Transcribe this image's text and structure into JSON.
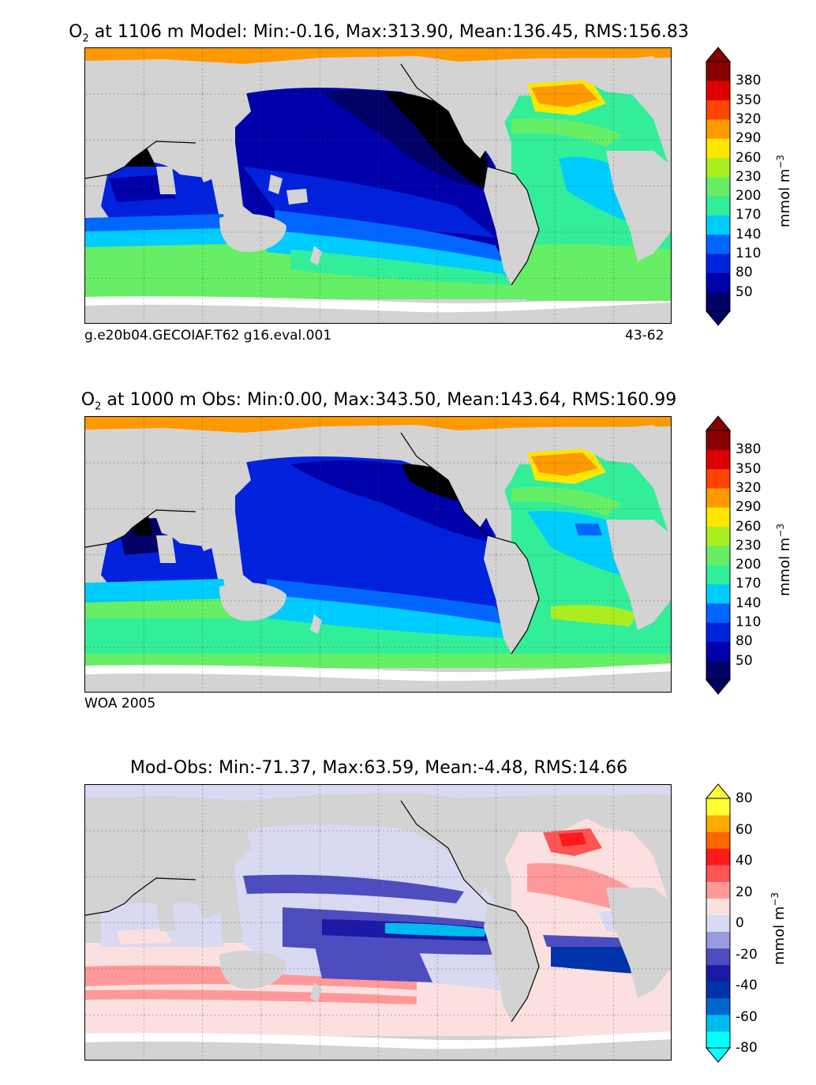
{
  "panels": {
    "model": {
      "title_species": "O",
      "title_sub": "2",
      "title_rest": " at 1106 m Model: Min:-0.16, Max:313.90, Mean:136.45, RMS:156.83",
      "caption_left": "g.e20b04.GECOIAF.T62 g16.eval.001",
      "caption_right": "43-62"
    },
    "obs": {
      "title_species": "O",
      "title_sub": "2",
      "title_rest": " at 1000 m Obs: Min:0.00, Max:343.50, Mean:143.64, RMS:160.99",
      "caption_left": "WOA 2005"
    },
    "diff": {
      "title": "Mod-Obs: Min:-71.37, Max:63.59, Mean:-4.48, RMS:14.66"
    }
  },
  "colorbars": {
    "o2": {
      "unit_base": "mmol m",
      "unit_exp": "−3",
      "ticks": [
        "50",
        "80",
        "110",
        "140",
        "170",
        "200",
        "230",
        "260",
        "290",
        "320",
        "350",
        "380"
      ],
      "colors": [
        "#000066",
        "#0000aa",
        "#0022dd",
        "#0066ff",
        "#00ccff",
        "#33ee99",
        "#66ee66",
        "#aaee22",
        "#ffe600",
        "#ff9900",
        "#ff4400",
        "#dd0000",
        "#880000"
      ],
      "under_color": "#000066",
      "over_color": "#880000"
    },
    "diff": {
      "unit_base": "mmol m",
      "unit_exp": "−3",
      "ticks": [
        "-80",
        "-60",
        "-40",
        "-20",
        "0",
        "20",
        "40",
        "60",
        "80"
      ],
      "colors": [
        "#00ffff",
        "#00bbee",
        "#0066cc",
        "#0033aa",
        "#1a1aa6",
        "#4d4dbf",
        "#9999dd",
        "#d9d9f2",
        "#fce0e0",
        "#ff9999",
        "#ff5555",
        "#ff1a1a",
        "#ff6600",
        "#ffaa00",
        "#ffff33"
      ],
      "under_color": "#00ffff",
      "over_color": "#ffff33"
    }
  },
  "map_colors": {
    "land": "#d3d3d3",
    "nodata": "#ffffff",
    "arctic": "#ff9900"
  }
}
